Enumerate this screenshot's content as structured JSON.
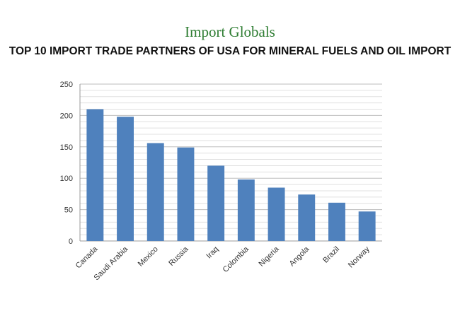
{
  "logo": {
    "text": "Import Globals",
    "color": "#2e7d32"
  },
  "chart_data": {
    "type": "bar",
    "title": "TOP 10 IMPORT TRADE PARTNERS OF USA FOR MINERAL FUELS AND OIL IMPORT",
    "xlabel": "",
    "ylabel": "",
    "categories": [
      "Canada",
      "Saudi Arabia",
      "Mexico",
      "Russia",
      "Iraq",
      "Colombia",
      "Nigeria",
      "Angola",
      "Brazil",
      "Norway"
    ],
    "values": [
      210,
      198,
      156,
      149,
      120,
      98,
      85,
      74,
      61,
      47
    ],
    "ylim": [
      0,
      250
    ],
    "yticks": [
      0,
      50,
      100,
      150,
      200,
      250
    ],
    "minor_grid_step": 10,
    "grid": true,
    "bar_color": "#4f81bd"
  }
}
